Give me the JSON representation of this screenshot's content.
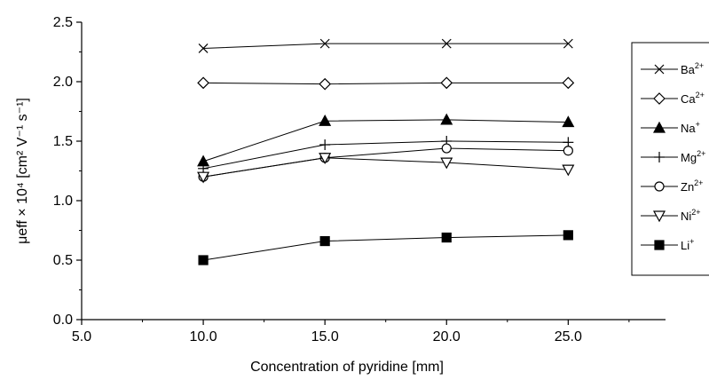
{
  "chart_data": {
    "type": "line",
    "xlabel": "Concentration of pyridine [mm]",
    "ylabel": "μeff × 10⁴ [cm² V⁻¹ s⁻¹]",
    "xlim": [
      5.0,
      29.0
    ],
    "ylim": [
      0.0,
      2.5
    ],
    "x_ticks": [
      "5.0",
      "10.0",
      "15.0",
      "20.0",
      "25.0"
    ],
    "y_ticks": [
      "0.0",
      "0.5",
      "1.0",
      "1.5",
      "2.0",
      "2.5"
    ],
    "x": [
      10,
      15,
      20,
      25
    ],
    "legend_position": "right",
    "grid": false,
    "series": [
      {
        "name": "Ba2+",
        "label": "Ba",
        "charge": "2+",
        "marker": "x",
        "values": [
          2.28,
          2.32,
          2.32,
          2.32
        ]
      },
      {
        "name": "Ca2+",
        "label": "Ca",
        "charge": "2+",
        "marker": "diamond-open",
        "values": [
          1.99,
          1.98,
          1.99,
          1.99
        ]
      },
      {
        "name": "Na+",
        "label": "Na",
        "charge": "+",
        "marker": "triangle-filled",
        "values": [
          1.33,
          1.67,
          1.68,
          1.66
        ]
      },
      {
        "name": "Mg2+",
        "label": "Mg",
        "charge": "2+",
        "marker": "plus",
        "values": [
          1.27,
          1.47,
          1.5,
          1.49
        ]
      },
      {
        "name": "Zn2+",
        "label": "Zn",
        "charge": "2+",
        "marker": "circle-open",
        "values": [
          1.2,
          1.36,
          1.44,
          1.42
        ]
      },
      {
        "name": "Ni2+",
        "label": "Ni",
        "charge": "2+",
        "marker": "triangle-down-open",
        "values": [
          1.2,
          1.36,
          1.32,
          1.26
        ]
      },
      {
        "name": "Li+",
        "label": "Li",
        "charge": "+",
        "marker": "square-filled",
        "values": [
          0.5,
          0.66,
          0.69,
          0.71
        ]
      }
    ]
  }
}
